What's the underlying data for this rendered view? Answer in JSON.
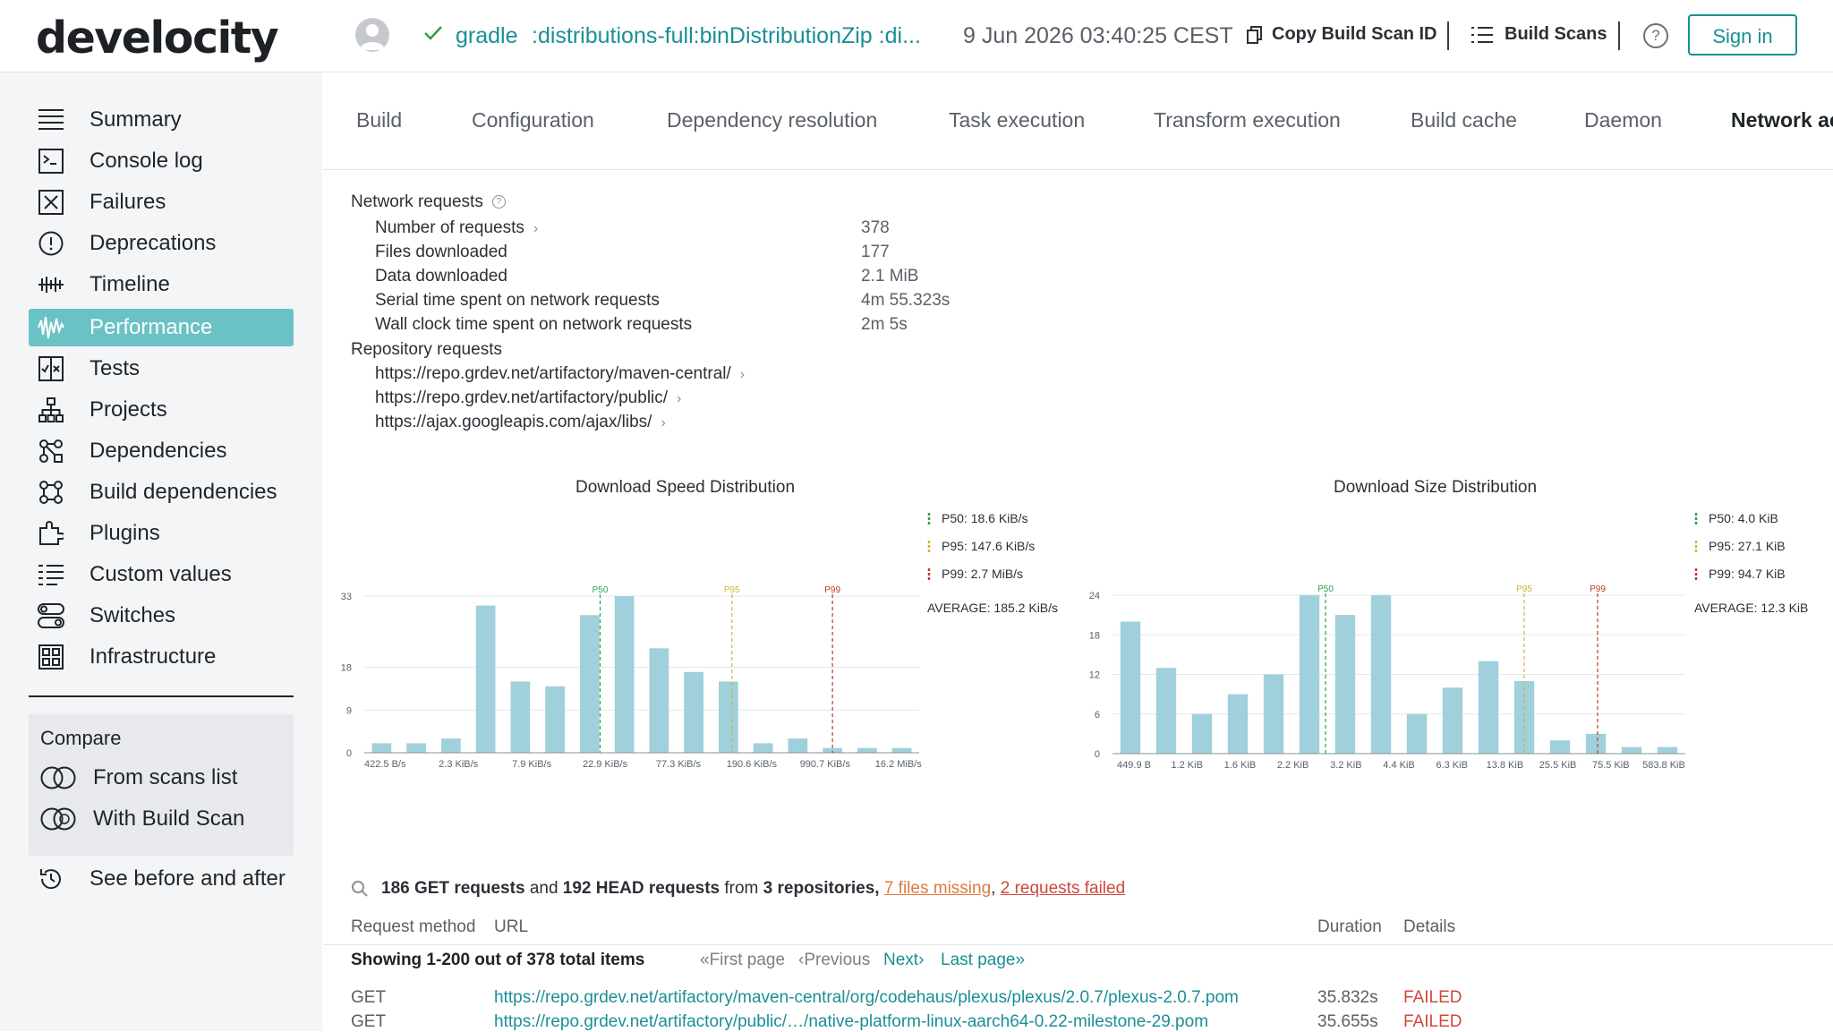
{
  "topbar": {
    "logo": "develocity",
    "project": "gradle",
    "task": ":distributions-full:binDistributionZip :di...",
    "date": "9 Jun 2026 03:40:25 CEST",
    "copy_label": "Copy Build Scan ID",
    "scans_label": "Build Scans",
    "help": "?",
    "signin": "Sign in"
  },
  "sidebar": {
    "items": [
      {
        "label": "Summary",
        "icon": "summary-icon"
      },
      {
        "label": "Console log",
        "icon": "console-icon"
      },
      {
        "label": "Failures",
        "icon": "failures-icon"
      },
      {
        "label": "Deprecations",
        "icon": "deprecations-icon"
      },
      {
        "label": "Timeline",
        "icon": "timeline-icon"
      },
      {
        "label": "Performance",
        "icon": "performance-icon",
        "active": true
      },
      {
        "label": "Tests",
        "icon": "tests-icon"
      },
      {
        "label": "Projects",
        "icon": "projects-icon"
      },
      {
        "label": "Dependencies",
        "icon": "dependencies-icon"
      },
      {
        "label": "Build dependencies",
        "icon": "build-dependencies-icon"
      },
      {
        "label": "Plugins",
        "icon": "plugins-icon"
      },
      {
        "label": "Custom values",
        "icon": "custom-values-icon"
      },
      {
        "label": "Switches",
        "icon": "switches-icon"
      },
      {
        "label": "Infrastructure",
        "icon": "infrastructure-icon"
      }
    ],
    "compare": {
      "title": "Compare",
      "from_list": "From scans list",
      "with_scan": "With Build Scan"
    },
    "see_before": "See before and after"
  },
  "tabs": [
    "Build",
    "Configuration",
    "Dependency resolution",
    "Task execution",
    "Transform execution",
    "Build cache",
    "Daemon",
    "Network ac"
  ],
  "network": {
    "heading": "Network requests",
    "rows": [
      {
        "label": "Number of requests",
        "value": "378"
      },
      {
        "label": "Files downloaded",
        "value": "177"
      },
      {
        "label": "Data downloaded",
        "value": "2.1 MiB"
      },
      {
        "label": "Serial time spent on network requests",
        "value": "4m 55.323s"
      },
      {
        "label": "Wall clock time spent on network requests",
        "value": "2m 5s"
      }
    ],
    "repo_heading": "Repository requests",
    "repos": [
      "https://repo.grdev.net/artifactory/maven-central/",
      "https://repo.grdev.net/artifactory/public/",
      "https://ajax.googleapis.com/ajax/libs/"
    ]
  },
  "chart_data": [
    {
      "type": "bar",
      "title": "Download Speed Distribution",
      "yticks": [
        0,
        9,
        18,
        33
      ],
      "ylim": [
        0,
        33
      ],
      "values": [
        2,
        2,
        3,
        31,
        15,
        14,
        29,
        33,
        22,
        17,
        15,
        2,
        3,
        1,
        1,
        1
      ],
      "xtick_labels": [
        "422.5 B/s",
        "2.3 KiB/s",
        "7.9 KiB/s",
        "22.9 KiB/s",
        "77.3 KiB/s",
        "190.6 KiB/s",
        "990.7 KiB/s",
        "16.2 MiB/s"
      ],
      "markers": [
        {
          "label": "P50",
          "color": "#2f9e4a",
          "pos": 6.8
        },
        {
          "label": "P95",
          "color": "#d8b13a",
          "pos": 10.6
        },
        {
          "label": "P99",
          "color": "#c0392b",
          "pos": 13.5
        }
      ],
      "legend": [
        {
          "text": "P50: 18.6 KiB/s",
          "color": "#2f9e4a"
        },
        {
          "text": "P95: 147.6 KiB/s",
          "color": "#d8b13a"
        },
        {
          "text": "P99: 2.7 MiB/s",
          "color": "#c0392b"
        }
      ],
      "average": "AVERAGE: 185.2 KiB/s",
      "color": "#9fd0dc"
    },
    {
      "type": "bar",
      "title": "Download Size Distribution",
      "yticks": [
        0,
        6,
        12,
        18,
        24
      ],
      "ylim": [
        0,
        24
      ],
      "values": [
        20,
        13,
        6,
        9,
        12,
        24,
        21,
        24,
        6,
        10,
        14,
        11,
        2,
        3,
        1,
        1
      ],
      "xtick_labels": [
        "449.9 B",
        "1.2 KiB",
        "1.6 KiB",
        "2.2 KiB",
        "3.2 KiB",
        "4.4 KiB",
        "6.3 KiB",
        "13.8 KiB",
        "25.5 KiB",
        "75.5 KiB",
        "583.8 KiB"
      ],
      "markers": [
        {
          "label": "P50",
          "color": "#2f9e4a",
          "pos": 5.95
        },
        {
          "label": "P95",
          "color": "#d8b13a",
          "pos": 11.5
        },
        {
          "label": "P99",
          "color": "#c0392b",
          "pos": 13.55
        }
      ],
      "legend": [
        {
          "text": "P50: 4.0 KiB",
          "color": "#2f9e4a"
        },
        {
          "text": "P95: 27.1 KiB",
          "color": "#d8b13a"
        },
        {
          "text": "P99: 94.7 KiB",
          "color": "#c0392b"
        }
      ],
      "average": "AVERAGE: 12.3 KiB",
      "color": "#9fd0dc"
    }
  ],
  "requests": {
    "summary": {
      "get": "186 GET requests",
      "and": "and",
      "head": "192 HEAD requests",
      "from": "from",
      "repos": "3 repositories,",
      "missing": "7 files missing",
      "comma": ",",
      "failed": "2 requests failed"
    },
    "columns": {
      "method": "Request method",
      "url": "URL",
      "duration": "Duration",
      "details": "Details"
    },
    "showing": "Showing 1-200 out of 378 total items",
    "pager": {
      "first": "«First page",
      "previous": "‹Previous",
      "next": "Next›",
      "last": "Last page»"
    },
    "rows": [
      {
        "method": "GET",
        "url": "https://repo.grdev.net/artifactory/maven-central/org/codehaus/plexus/plexus/2.0.7/plexus-2.0.7.pom",
        "duration": "35.832s",
        "status": "FAILED"
      },
      {
        "method": "GET",
        "url": "https://repo.grdev.net/artifactory/public/…/native-platform-linux-aarch64-0.22-milestone-29.pom",
        "duration": "35.655s",
        "status": "FAILED"
      }
    ]
  }
}
